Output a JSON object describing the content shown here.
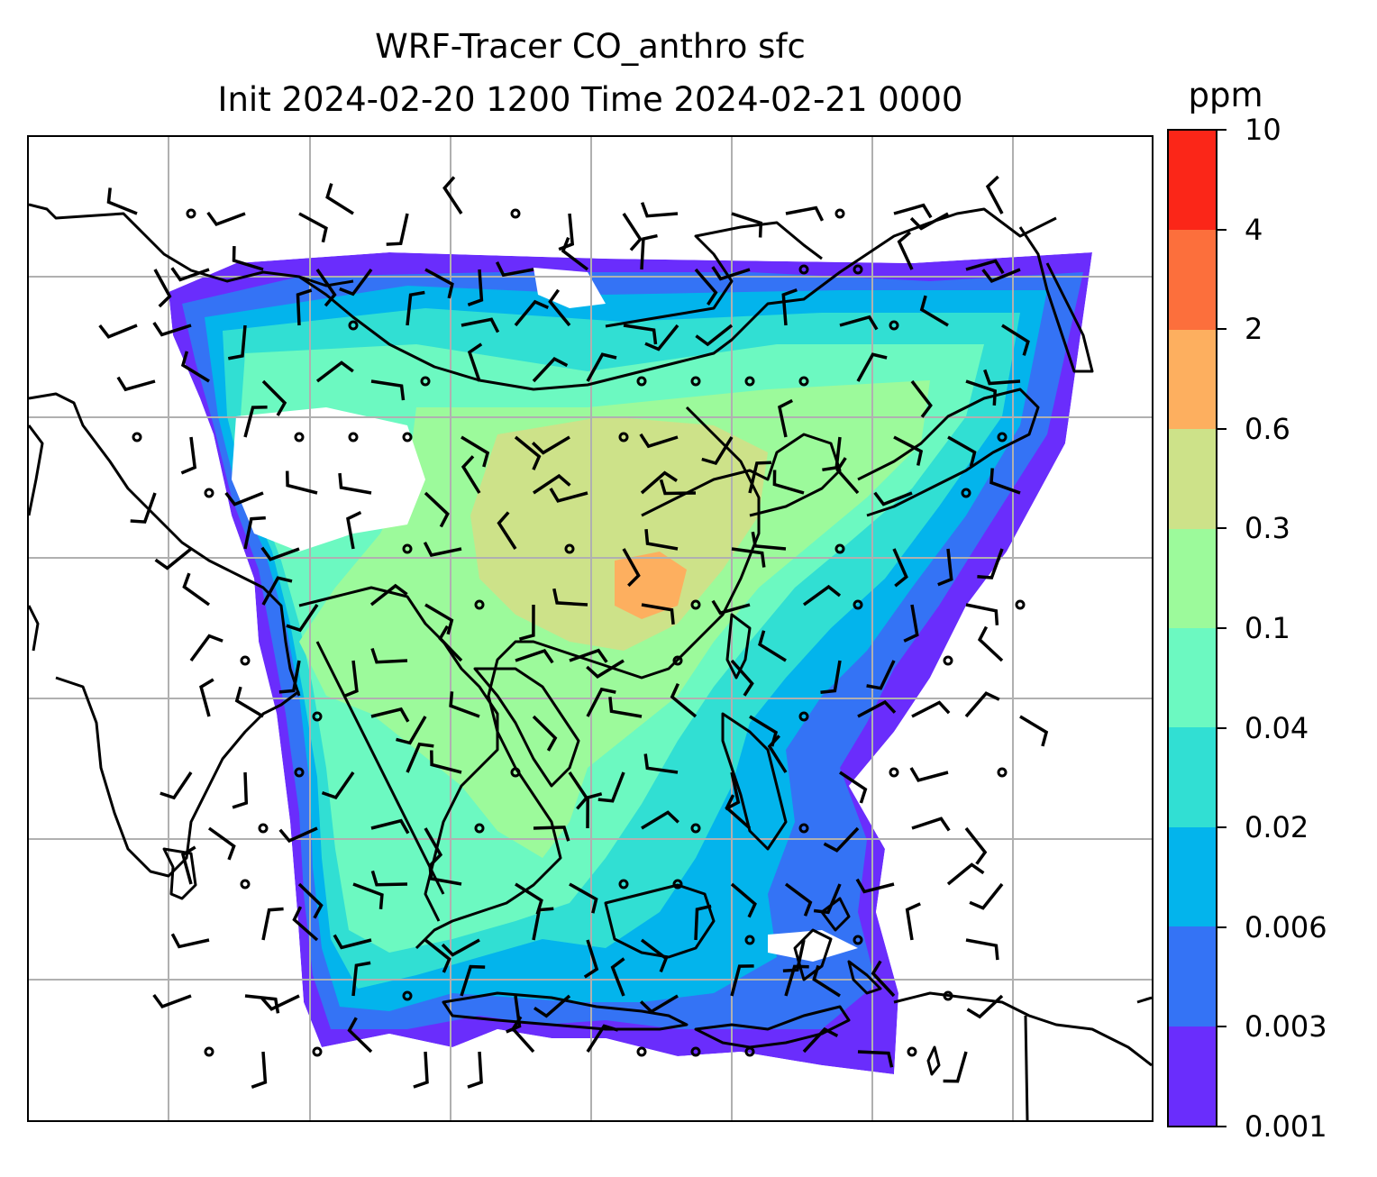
{
  "title_line1": "WRF-Tracer CO_anthro sfc",
  "title_line2": "Init 2024-02-20 1200 Time 2024-02-21 0000",
  "colorbar": {
    "unit": "ppm",
    "levels": [
      "0.001",
      "0.003",
      "0.006",
      "0.02",
      "0.04",
      "0.1",
      "0.3",
      "0.6",
      "2",
      "4",
      "10"
    ],
    "colors": [
      "#6a2dfc",
      "#3473f5",
      "#03b4ec",
      "#31dfd3",
      "#6cf9c1",
      "#9cfa9b",
      "#cde289",
      "#fdaf5f",
      "#fc6f3c",
      "#fb2618"
    ]
  },
  "map": {
    "projection": "Lambert/PlateCarree regional",
    "gridlines": true,
    "coastlines": true,
    "wind_barbs": true,
    "field": "CO_anthro surface concentration"
  }
}
